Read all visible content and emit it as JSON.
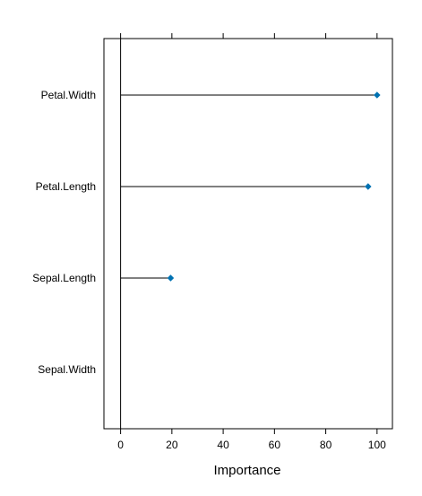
{
  "chart_data": {
    "type": "dot",
    "xlabel": "Importance",
    "ylabel": "",
    "title": "",
    "xlim": [
      -6.5,
      106
    ],
    "x_ticks": [
      0,
      20,
      40,
      60,
      80,
      100
    ],
    "categories": [
      "Petal.Width",
      "Petal.Length",
      "Sepal.Length",
      "Sepal.Width"
    ],
    "values": [
      100,
      96.5,
      19.5,
      0
    ],
    "point_color": "#0072B2",
    "segment_color": "#000000",
    "reference_line_at": 0,
    "grid": false,
    "legend": "none"
  }
}
